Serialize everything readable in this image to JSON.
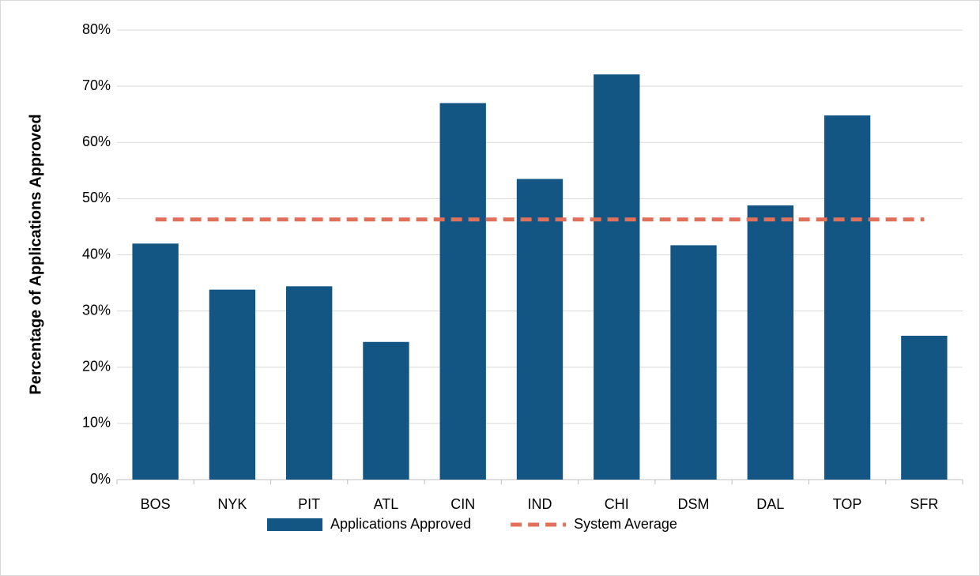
{
  "chart_data": {
    "type": "bar",
    "y_label": "Percentage of Applications Approved",
    "categories": [
      "BOS",
      "NYK",
      "PIT",
      "ATL",
      "CIN",
      "IND",
      "CHI",
      "DSM",
      "DAL",
      "TOP",
      "SFR"
    ],
    "series": [
      {
        "name": "Applications Approved",
        "type": "bar",
        "color": "#135684",
        "values": [
          42,
          33.8,
          34.4,
          24.5,
          67,
          53.5,
          72.1,
          41.7,
          48.8,
          64.8,
          25.6
        ]
      },
      {
        "name": "System Average",
        "type": "line",
        "dashed": true,
        "color": "#e07059",
        "values": [
          46.3,
          46.3,
          46.3,
          46.3,
          46.3,
          46.3,
          46.3,
          46.3,
          46.3,
          46.3,
          46.3
        ]
      }
    ],
    "ylim": [
      0,
      80
    ],
    "yticks": [
      {
        "value": 0,
        "label": "0%"
      },
      {
        "value": 10,
        "label": "10%"
      },
      {
        "value": 20,
        "label": "20%"
      },
      {
        "value": 30,
        "label": "30%"
      },
      {
        "value": 40,
        "label": "40%"
      },
      {
        "value": 50,
        "label": "50%"
      },
      {
        "value": 60,
        "label": "60%"
      },
      {
        "value": 70,
        "label": "70%"
      },
      {
        "value": 80,
        "label": "80%"
      }
    ],
    "grid": true,
    "legend": "bottom"
  }
}
